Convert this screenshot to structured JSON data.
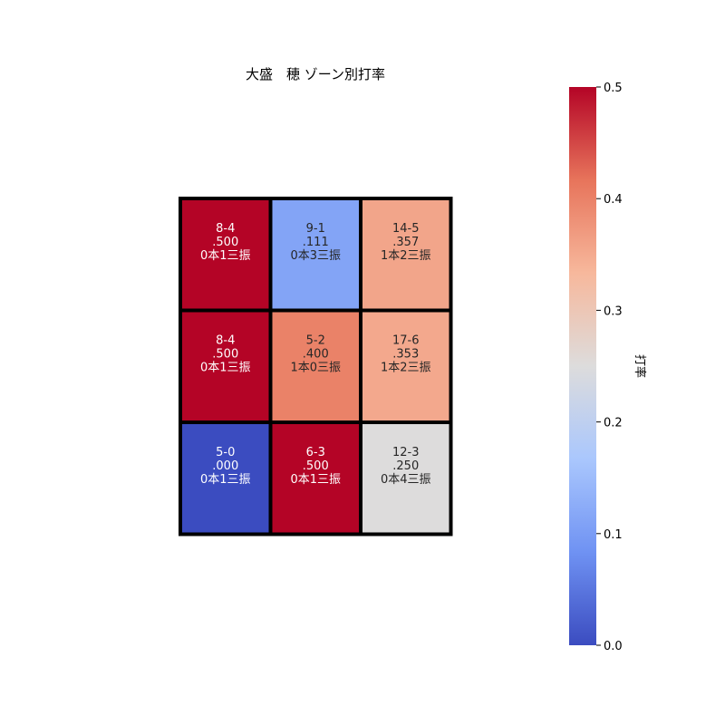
{
  "chart_data": {
    "type": "heatmap",
    "title": "大盛　穂 ゾーン別打率",
    "colorbar": {
      "label": "打率",
      "range": [
        0.0,
        0.5
      ],
      "ticks": [
        0.0,
        0.1,
        0.2,
        0.3,
        0.4,
        0.5
      ],
      "tick_labels": [
        "0.0",
        "0.1",
        "0.2",
        "0.3",
        "0.4",
        "0.5"
      ],
      "colormap": "coolwarm",
      "colors": [
        "#3b4cc0",
        "#6f92f3",
        "#aac7fd",
        "#dddcdc",
        "#f7b89c",
        "#e7745b",
        "#b40426"
      ]
    },
    "rows": 3,
    "cols": 3,
    "cells": [
      {
        "row": 0,
        "col": 0,
        "value": 0.5,
        "l1": "8-4",
        "l2": ".500",
        "l3": "0本1三振"
      },
      {
        "row": 0,
        "col": 1,
        "value": 0.111,
        "l1": "9-1",
        "l2": ".111",
        "l3": "0本3三振"
      },
      {
        "row": 0,
        "col": 2,
        "value": 0.357,
        "l1": "14-5",
        "l2": ".357",
        "l3": "1本2三振"
      },
      {
        "row": 1,
        "col": 0,
        "value": 0.5,
        "l1": "8-4",
        "l2": ".500",
        "l3": "0本1三振"
      },
      {
        "row": 1,
        "col": 1,
        "value": 0.4,
        "l1": "5-2",
        "l2": ".400",
        "l3": "1本0三振"
      },
      {
        "row": 1,
        "col": 2,
        "value": 0.353,
        "l1": "17-6",
        "l2": ".353",
        "l3": "1本2三振"
      },
      {
        "row": 2,
        "col": 0,
        "value": 0.0,
        "l1": "5-0",
        "l2": ".000",
        "l3": "0本1三振"
      },
      {
        "row": 2,
        "col": 1,
        "value": 0.5,
        "l1": "6-3",
        "l2": ".500",
        "l3": "0本1三振"
      },
      {
        "row": 2,
        "col": 2,
        "value": 0.25,
        "l1": "12-3",
        "l2": ".250",
        "l3": "0本4三振"
      }
    ]
  }
}
